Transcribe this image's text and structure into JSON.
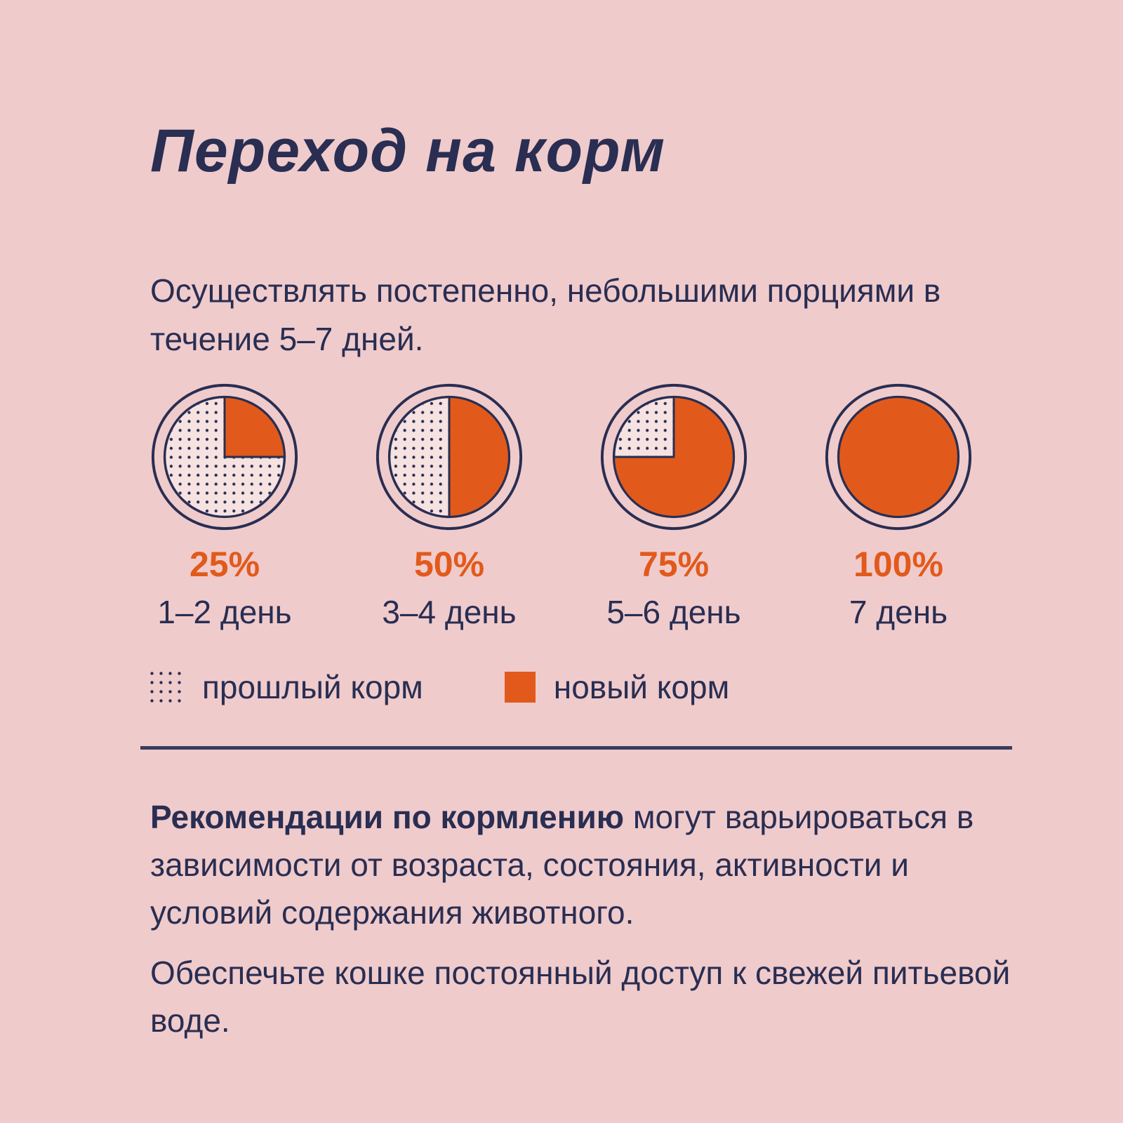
{
  "page": {
    "background": "#f0cbcc",
    "navy": "#292e52",
    "orange": "#e15a1b",
    "plate_fill": "#f6e2e1",
    "divider_color": "#3a3d5e"
  },
  "title": "Переход на корм",
  "intro": "Осуществлять постепенно, небольшими порциями в течение 5–7 дней.",
  "steps": [
    {
      "percent": "25%",
      "value": 25,
      "days": "1–2 день"
    },
    {
      "percent": "50%",
      "value": 50,
      "days": "3–4 день"
    },
    {
      "percent": "75%",
      "value": 75,
      "days": "5–6 день"
    },
    {
      "percent": "100%",
      "value": 100,
      "days": "7 день"
    }
  ],
  "legend": {
    "old_food": "прошлый корм",
    "new_food": "новый корм"
  },
  "notes": [
    {
      "bold": "Рекомендации по кормлению",
      "rest": " могут варьироваться в зависимости от возраста, состояния, активности и условий содержания животного."
    },
    {
      "bold": "",
      "rest": "Обеспечьте кошке постоянный доступ к свежей питьевой воде."
    }
  ],
  "chart_data": {
    "type": "pie",
    "title": "Переход на корм",
    "subtitle": "Осуществлять постепенно, небольшими порциями в течение 5–7 дней.",
    "charts": [
      {
        "label": "1–2 день",
        "slices": [
          {
            "name": "новый корм",
            "value": 25
          },
          {
            "name": "прошлый корм",
            "value": 75
          }
        ]
      },
      {
        "label": "3–4 день",
        "slices": [
          {
            "name": "новый корм",
            "value": 50
          },
          {
            "name": "прошлый корм",
            "value": 50
          }
        ]
      },
      {
        "label": "5–6 день",
        "slices": [
          {
            "name": "новый корм",
            "value": 75
          },
          {
            "name": "прошлый корм",
            "value": 25
          }
        ]
      },
      {
        "label": "7 день",
        "slices": [
          {
            "name": "новый корм",
            "value": 100
          },
          {
            "name": "прошлый корм",
            "value": 0
          }
        ]
      }
    ],
    "legend": [
      {
        "label": "прошлый корм",
        "style": "dotted"
      },
      {
        "label": "новый корм",
        "style": "solid",
        "color": "#e15a1b"
      }
    ],
    "legend_position": "below",
    "value_labels": [
      "25%",
      "50%",
      "75%",
      "100%"
    ],
    "slice_start": "12-oclock",
    "slice_direction": "clockwise"
  }
}
